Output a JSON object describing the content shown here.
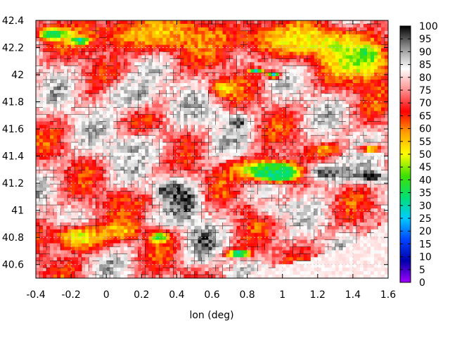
{
  "chart_data": {
    "type": "heatmap",
    "title": "",
    "xlabel": "lon (deg)",
    "ylabel": "",
    "xlim": [
      -0.4,
      1.6
    ],
    "ylim": [
      40.5,
      42.4
    ],
    "x_ticks": [
      -0.4,
      -0.2,
      0,
      0.2,
      0.4,
      0.6,
      0.8,
      1,
      1.2,
      1.4,
      1.6
    ],
    "x_tick_labels": [
      "-0.4",
      "-0.2",
      "0",
      "0.2",
      "0.4",
      "0.6",
      "0.8",
      "1",
      "1.2",
      "1.4",
      "1.6"
    ],
    "y_ticks": [
      40.6,
      40.8,
      41,
      41.2,
      41.4,
      41.6,
      41.8,
      42,
      42.2,
      42.4
    ],
    "y_tick_labels": [
      "40.6",
      "40.8",
      "41",
      "41.2",
      "41.4",
      "41.6",
      "41.8",
      "42",
      "42.2",
      "42.4"
    ],
    "grid": true,
    "colorbar": {
      "min": 0,
      "max": 100,
      "ticks": [
        0,
        5,
        10,
        15,
        20,
        25,
        30,
        35,
        40,
        45,
        50,
        55,
        60,
        65,
        70,
        75,
        80,
        85,
        90,
        95,
        100
      ],
      "tick_labels": [
        "0",
        "5",
        "10",
        "15",
        "20",
        "25",
        "30",
        "35",
        "40",
        "45",
        "50",
        "55",
        "60",
        "65",
        "70",
        "75",
        "80",
        "85",
        "90",
        "95",
        "100"
      ],
      "colors": [
        "#a000ff",
        "#0000aa",
        "#0044ff",
        "#00ccff",
        "#00e070",
        "#40e000",
        "#ffff00",
        "#ffa000",
        "#ff0000",
        "#ff9090",
        "#ffffff",
        "#909090",
        "#000000"
      ]
    },
    "sea_value": 82,
    "features": [
      {
        "lon": 0.25,
        "lat": 42.3,
        "value": 55,
        "sx": 0.55,
        "sy": 0.18
      },
      {
        "lon": 1.1,
        "lat": 42.25,
        "value": 52,
        "sx": 0.45,
        "sy": 0.16
      },
      {
        "lon": 1.45,
        "lat": 42.1,
        "value": 45,
        "sx": 0.25,
        "sy": 0.2
      },
      {
        "lon": -0.3,
        "lat": 42.3,
        "value": 30,
        "sx": 0.1,
        "sy": 0.05
      },
      {
        "lon": -0.15,
        "lat": 42.25,
        "value": 22,
        "sx": 0.06,
        "sy": 0.03
      },
      {
        "lon": 1.47,
        "lat": 42.15,
        "value": 30,
        "sx": 0.05,
        "sy": 0.04
      },
      {
        "lon": 0.85,
        "lat": 42.03,
        "value": 28,
        "sx": 0.05,
        "sy": 0.02
      },
      {
        "lon": 0.95,
        "lat": 42.0,
        "value": 30,
        "sx": 0.05,
        "sy": 0.03
      },
      {
        "lon": 0.67,
        "lat": 41.9,
        "value": 50,
        "sx": 0.1,
        "sy": 0.07
      },
      {
        "lon": 0.15,
        "lat": 41.85,
        "value": 90,
        "sx": 0.2,
        "sy": 0.15
      },
      {
        "lon": 0.15,
        "lat": 41.45,
        "value": 88,
        "sx": 0.25,
        "sy": 0.12
      },
      {
        "lon": 0.55,
        "lat": 41.7,
        "value": 88,
        "sx": 0.15,
        "sy": 0.1
      },
      {
        "lon": 0.75,
        "lat": 41.65,
        "value": 98,
        "sx": 0.07,
        "sy": 0.06
      },
      {
        "lon": 0.9,
        "lat": 41.3,
        "value": 42,
        "sx": 0.25,
        "sy": 0.1
      },
      {
        "lon": 0.98,
        "lat": 41.27,
        "value": 25,
        "sx": 0.14,
        "sy": 0.07
      },
      {
        "lon": 1.25,
        "lat": 41.28,
        "value": 98,
        "sx": 0.18,
        "sy": 0.1
      },
      {
        "lon": 1.5,
        "lat": 41.25,
        "value": 98,
        "sx": 0.12,
        "sy": 0.06
      },
      {
        "lon": 0.45,
        "lat": 41.05,
        "value": 97,
        "sx": 0.12,
        "sy": 0.18
      },
      {
        "lon": 0.35,
        "lat": 41.15,
        "value": 96,
        "sx": 0.1,
        "sy": 0.08
      },
      {
        "lon": 0.55,
        "lat": 40.75,
        "value": 96,
        "sx": 0.08,
        "sy": 0.15
      },
      {
        "lon": 0.95,
        "lat": 41.0,
        "value": 85,
        "sx": 0.25,
        "sy": 0.06
      },
      {
        "lon": 0.8,
        "lat": 41.0,
        "value": 60,
        "sx": 0.08,
        "sy": 0.05
      },
      {
        "lon": -0.15,
        "lat": 40.8,
        "value": 48,
        "sx": 0.2,
        "sy": 0.12
      },
      {
        "lon": 0.3,
        "lat": 40.8,
        "value": 38,
        "sx": 0.07,
        "sy": 0.05
      },
      {
        "lon": 0.1,
        "lat": 40.85,
        "value": 55,
        "sx": 0.12,
        "sy": 0.08
      },
      {
        "lon": 0.12,
        "lat": 41.05,
        "value": 65,
        "sx": 0.2,
        "sy": 0.1
      },
      {
        "lon": 1.25,
        "lat": 41.45,
        "value": 55,
        "sx": 0.1,
        "sy": 0.04
      },
      {
        "lon": 1.5,
        "lat": 41.45,
        "value": 50,
        "sx": 0.08,
        "sy": 0.04
      },
      {
        "lon": 0.75,
        "lat": 40.68,
        "value": 20,
        "sx": 0.08,
        "sy": 0.03
      }
    ]
  }
}
